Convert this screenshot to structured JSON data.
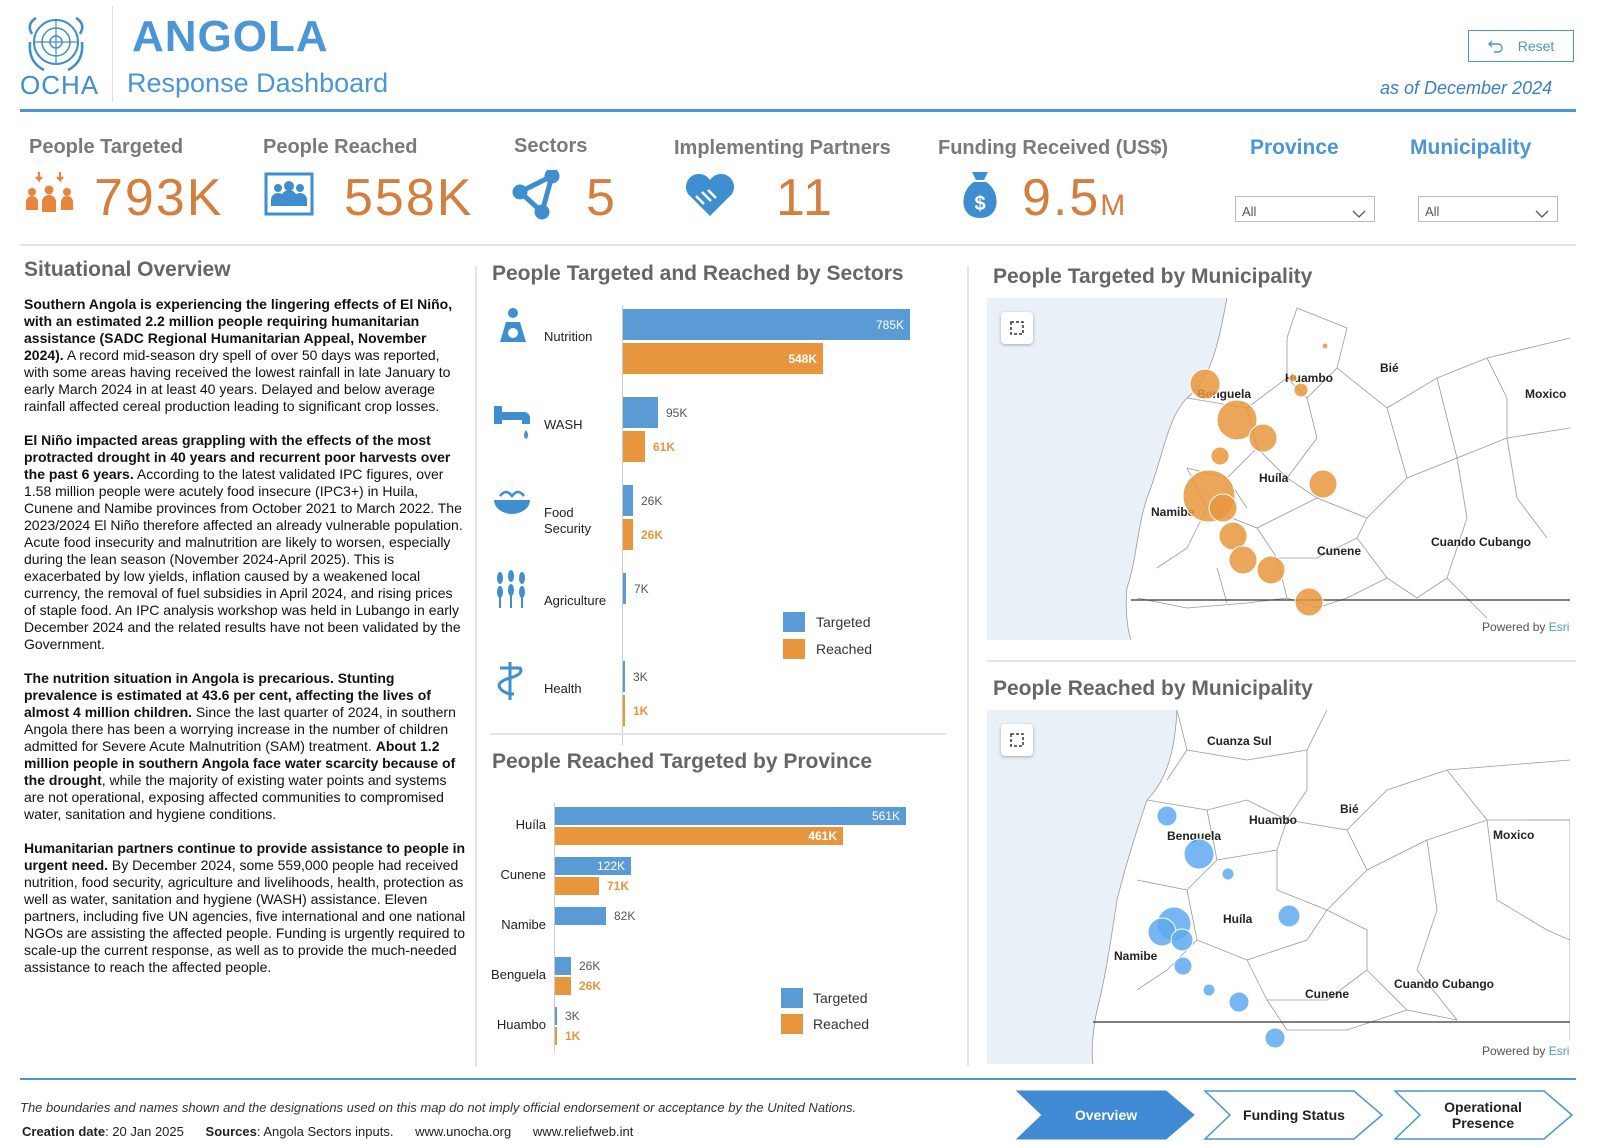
{
  "header": {
    "logo_text": "OCHA",
    "logo_dots": "...",
    "title": "ANGOLA",
    "subtitle": "Response Dashboard",
    "reset_label": "Reset",
    "as_of": "as of  December 2024"
  },
  "kpis": [
    {
      "label": "People Targeted",
      "value": "793K",
      "icon": "people-arrows-icon"
    },
    {
      "label": "People Reached",
      "value": "558K",
      "icon": "group-people-icon"
    },
    {
      "label": "Sectors",
      "value": "5",
      "icon": "network-icon"
    },
    {
      "label": "Implementing Partners",
      "value": "11",
      "icon": "handshake-icon"
    },
    {
      "label": "Funding Received (US$)",
      "value": "9.5",
      "unit": "M",
      "icon": "money-bag-icon"
    }
  ],
  "filters": {
    "province": {
      "label": "Province",
      "value": "All"
    },
    "municipality": {
      "label": "Municipality",
      "value": "All"
    }
  },
  "overview": {
    "title": "Situational Overview",
    "p1_bold": "Southern Angola is experiencing the lingering effects of El Niño, with an estimated 2.2 million people requiring humanitarian assistance (SADC Regional Humanitarian Appeal, November 2024).",
    "p1_text": " A record mid-season dry spell of over 50 days was reported, with some areas having received the lowest rainfall in late January to early March 2024 in at least 40 years. Delayed and below average rainfall affected cereal production leading to significant crop losses.",
    "p2_bold": "El Niño impacted areas grappling with the effects of the most protracted drought in 40 years and recurrent poor harvests over the past 6 years.",
    "p2_text": " According to the latest validated IPC figures, over 1.58 million people were acutely food insecure (IPC3+) in Huila, Cunene and Namibe provinces from October 2021 to March 2022. The 2023/2024 El Niño therefore affected an already vulnerable population. Acute food insecurity and malnutrition are likely to worsen, especially during the lean season (November 2024-April 2025). This is exacerbated by low yields, inflation caused by a weakened local currency, the removal of fuel subsidies in April 2024, and rising prices of staple food. An IPC analysis workshop was held in Lubango in early December 2024 and the related results have not been validated by the Government.",
    "p3_bold": "The nutrition situation in Angola is precarious. Stunting prevalence is estimated at 43.6 per cent, affecting the lives of almost 4 million children.",
    "p3_text": " Since the last quarter of 2024, in southern Angola there has been a worrying increase in the number of children admitted for Severe Acute Malnutrition (SAM) treatment. ",
    "p3_bold2": "About 1.2 million people in southern Angola face water scarcity because of the drought",
    "p3_text2": ", while the majority of existing water points and systems are not operational, exposing affected communities to compromised water, sanitation and hygiene conditions.",
    "p4_bold": "Humanitarian partners continue to provide assistance to people in urgent need.",
    "p4_text": " By December 2024, some 559,000 people had received nutrition, food security, agriculture and livelihoods, health, protection as well as water, sanitation and hygiene (WASH) assistance. Eleven partners, including five UN agencies, five international and one national NGOs are assisting the affected people. Funding is urgently required to scale-up the current response, as well as to provide the much-needed assistance to reach the affected people."
  },
  "chart_data": [
    {
      "type": "bar",
      "title": "People Targeted and Reached by Sectors",
      "categories": [
        "Nutrition",
        "WASH",
        "Food Security",
        "Agriculture",
        "Health"
      ],
      "series": [
        {
          "name": "Targeted",
          "values": [
            785000,
            95000,
            26000,
            7000,
            3000
          ],
          "labels": [
            "785K",
            "95K",
            "26K",
            "7K",
            "3K"
          ]
        },
        {
          "name": "Reached",
          "values": [
            548000,
            61000,
            26000,
            0,
            1000
          ],
          "labels": [
            "548K",
            "61K",
            "26K",
            "",
            "1K"
          ]
        }
      ],
      "xlim": [
        0,
        785000
      ],
      "legend": "right"
    },
    {
      "type": "bar",
      "title": "People Reached Targeted by Province",
      "categories": [
        "Huíla",
        "Cunene",
        "Namibe",
        "Benguela",
        "Huambo"
      ],
      "series": [
        {
          "name": "Targeted",
          "values": [
            561000,
            122000,
            82000,
            26000,
            3000
          ],
          "labels": [
            "561K",
            "122K",
            "82K",
            "26K",
            "3K"
          ]
        },
        {
          "name": "Reached",
          "values": [
            461000,
            71000,
            0,
            26000,
            1000
          ],
          "labels": [
            "461K",
            "71K",
            "",
            "26K",
            "1K"
          ]
        }
      ],
      "xlim": [
        0,
        561000
      ],
      "legend": "right"
    }
  ],
  "colors": {
    "targeted": "#5b9bd5",
    "reached": "#e8963d",
    "accent": "#4a96d6",
    "kpi_value": "#d47e3f"
  },
  "sector_icons": [
    "nutrition-icon",
    "water-tap-icon",
    "food-bowl-icon",
    "wheat-icon",
    "health-icon"
  ],
  "maps": {
    "targeted": {
      "title": "People Targeted by Municipality",
      "labels": [
        "Benguela",
        "Huambo",
        "Bié",
        "Moxico",
        "Huíla",
        "Namibe",
        "Cunene",
        "Cuando Cubango"
      ],
      "powered_prefix": "Powered by ",
      "powered_brand": "Esri"
    },
    "reached": {
      "title": "People Reached by Municipality",
      "labels": [
        "Cuanza Sul",
        "Benguela",
        "Huambo",
        "Bié",
        "Moxico",
        "Huíla",
        "Namibe",
        "Cunene",
        "Cuando Cubango"
      ],
      "powered_prefix": "Powered by ",
      "powered_brand": "Esri"
    }
  },
  "footer": {
    "disclaimer": "The boundaries and names shown and the designations used on this map do not imply official endorsement or acceptance by the United Nations.",
    "creation_label": "Creation date",
    "creation_value": ": 20 Jan 2025",
    "sources_label": "Sources",
    "sources_value": ": Angola Sectors inputs.",
    "link1": "www.unocha.org",
    "link2": "www.reliefweb.int"
  },
  "nav": [
    {
      "label": "Overview",
      "active": true
    },
    {
      "label": "Funding Status",
      "active": false
    },
    {
      "label": "Operational Presence",
      "active": false
    }
  ]
}
